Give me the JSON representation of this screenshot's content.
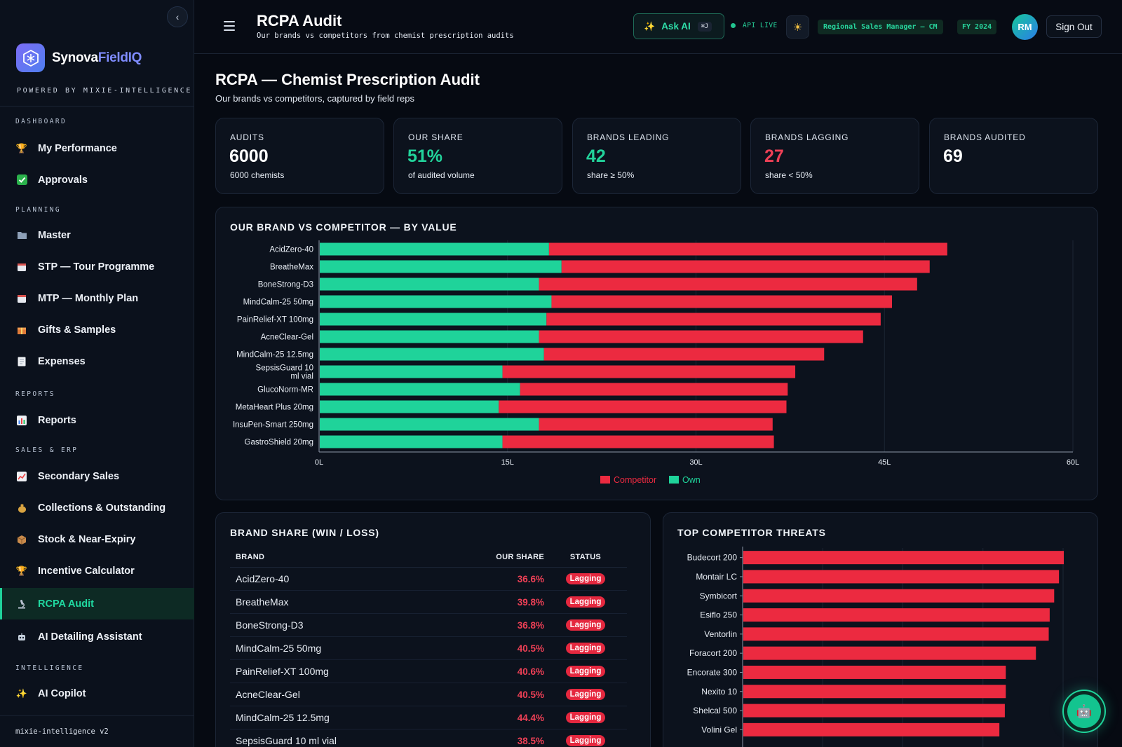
{
  "sidebar": {
    "brand_a": "Synova",
    "brand_b": "FieldIQ",
    "powered": "POWERED BY MIXIE-INTELLIGENCE",
    "sections": {
      "dashboard": "DASHBOARD",
      "planning": "PLANNING",
      "reports": "REPORTS",
      "sales": "SALES & ERP",
      "intelligence": "INTELLIGENCE"
    },
    "items": {
      "performance": "My Performance",
      "approvals": "Approvals",
      "master": "Master",
      "stp": "STP — Tour Programme",
      "mtp": "MTP — Monthly Plan",
      "gifts": "Gifts & Samples",
      "expenses": "Expenses",
      "reports": "Reports",
      "secondary": "Secondary Sales",
      "collections": "Collections & Outstanding",
      "stock": "Stock & Near-Expiry",
      "incentive": "Incentive Calculator",
      "rcpa": "RCPA Audit",
      "detailing": "AI Detailing Assistant",
      "copilot": "AI Copilot"
    },
    "icons": {
      "performance": "trophy-icon",
      "approvals": "check-icon",
      "master": "folder-icon",
      "stp": "calendar-icon",
      "mtp": "calendar-icon",
      "gifts": "gift-icon",
      "expenses": "receipt-icon",
      "reports": "bar-chart-icon",
      "secondary": "line-chart-icon",
      "collections": "money-bag-icon",
      "stock": "box-icon",
      "incentive": "trophy-icon",
      "rcpa": "microscope-icon",
      "detailing": "robot-icon",
      "copilot": "sparkle-icon"
    },
    "version": "mixie-intelligence v2"
  },
  "topbar": {
    "title": "RCPA Audit",
    "subtitle": "Our brands vs competitors from chemist prescription audits",
    "ask_ai": "Ask AI",
    "shortcut": "⌘J",
    "api_status": "API LIVE",
    "role": "Regional Sales Manager — CM",
    "fy": "FY 2024",
    "avatar": "RM",
    "sign_out": "Sign Out"
  },
  "page": {
    "title": "RCPA — Chemist Prescription Audit",
    "subtitle": "Our brands vs competitors, captured by field reps"
  },
  "kpis": [
    {
      "label": "AUDITS",
      "value": "6000",
      "sub": "6000 chemists",
      "color": "#ffffff"
    },
    {
      "label": "OUR SHARE",
      "value": "51%",
      "sub": "of audited volume",
      "color": "#22d39b"
    },
    {
      "label": "BRANDS LEADING",
      "value": "42",
      "sub": "share ≥ 50%",
      "color": "#22d39b"
    },
    {
      "label": "BRANDS LAGGING",
      "value": "27",
      "sub": "share < 50%",
      "color": "#ef4056"
    },
    {
      "label": "BRANDS AUDITED",
      "value": "69",
      "sub": "",
      "color": "#ffffff"
    }
  ],
  "chart_titles": {
    "value": "OUR BRAND VS COMPETITOR — BY VALUE",
    "share": "BRAND SHARE (WIN / LOSS)",
    "threats": "TOP COMPETITOR THREATS"
  },
  "chart_data": [
    {
      "type": "bar",
      "orientation": "horizontal",
      "stacked": true,
      "title": "OUR BRAND VS COMPETITOR — BY VALUE",
      "categories": [
        "AcidZero-40",
        "BreatheMax",
        "BoneStrong-D3",
        "MindCalm-25 50mg",
        "PainRelief-XT 100mg",
        "AcneClear-Gel",
        "MindCalm-25 12.5mg",
        "SepsisGuard 10 ml vial",
        "GlucoNorm-MR",
        "MetaHeart Plus 20mg",
        "InsuPen-Smart 250mg",
        "GastroShield 20mg"
      ],
      "series": [
        {
          "name": "Own",
          "color": "#1fd39a",
          "values": [
            18.3,
            19.3,
            17.5,
            18.5,
            18.1,
            17.5,
            17.9,
            14.6,
            16.0,
            14.3,
            17.5,
            14.6
          ]
        },
        {
          "name": "Competitor",
          "color": "#ec2a40",
          "values": [
            31.7,
            29.3,
            30.1,
            27.1,
            26.6,
            25.8,
            22.3,
            23.3,
            21.3,
            22.9,
            18.6,
            21.6
          ]
        }
      ],
      "xlim": [
        0,
        60
      ],
      "xticks": [
        "0L",
        "15L",
        "30L",
        "45L",
        "60L"
      ],
      "legend": "bottom"
    },
    {
      "type": "table",
      "title": "BRAND SHARE (WIN / LOSS)",
      "columns": [
        "BRAND",
        "OUR SHARE",
        "STATUS"
      ],
      "rows": [
        [
          "AcidZero-40",
          "36.6%",
          "Lagging"
        ],
        [
          "BreatheMax",
          "39.8%",
          "Lagging"
        ],
        [
          "BoneStrong-D3",
          "36.8%",
          "Lagging"
        ],
        [
          "MindCalm-25 50mg",
          "40.5%",
          "Lagging"
        ],
        [
          "PainRelief-XT 100mg",
          "40.6%",
          "Lagging"
        ],
        [
          "AcneClear-Gel",
          "40.5%",
          "Lagging"
        ],
        [
          "MindCalm-25 12.5mg",
          "44.4%",
          "Lagging"
        ],
        [
          "SepsisGuard 10 ml vial",
          "38.5%",
          "Lagging"
        ]
      ]
    },
    {
      "type": "bar",
      "orientation": "horizontal",
      "title": "TOP COMPETITOR THREATS",
      "categories": [
        "Budecort 200",
        "Montair LC",
        "Symbicort",
        "Esiflo 250",
        "Ventorlin",
        "Foracort 200",
        "Encorate 300",
        "Nexito 10",
        "Shelcal 500",
        "Volini Gel"
      ],
      "values": [
        100,
        98.5,
        97,
        95.6,
        95.3,
        91.3,
        81.9,
        81.9,
        81.6,
        79.9
      ],
      "color": "#ec2a40"
    }
  ]
}
